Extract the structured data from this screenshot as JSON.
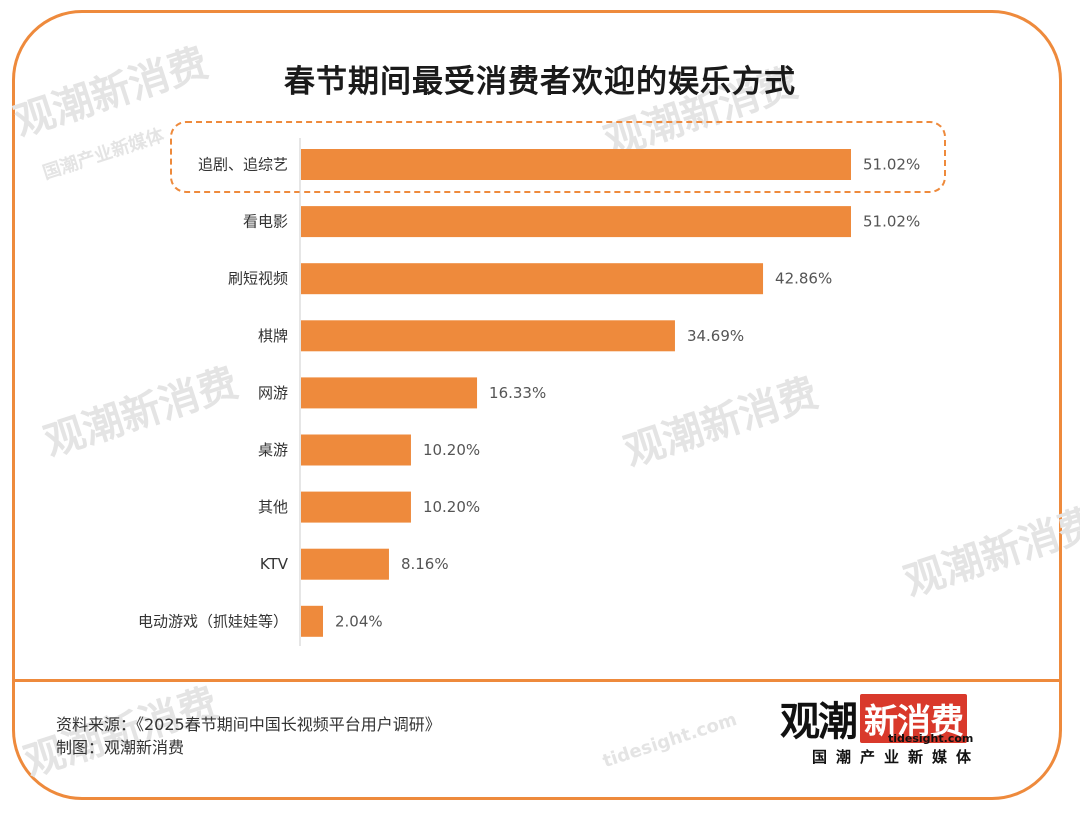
{
  "chart_data": {
    "type": "bar",
    "orientation": "horizontal",
    "title": "春节期间最受消费者欢迎的娱乐方式",
    "categories": [
      "追剧、追综艺",
      "看电影",
      "刷短视频",
      "棋牌",
      "网游",
      "桌游",
      "其他",
      "KTV",
      "电动游戏（抓娃娃等）"
    ],
    "values": [
      51.02,
      51.02,
      42.86,
      34.69,
      16.33,
      10.2,
      10.2,
      8.16,
      2.04
    ],
    "value_labels": [
      "51.02%",
      "51.02%",
      "42.86%",
      "34.69%",
      "16.33%",
      "10.20%",
      "10.20%",
      "8.16%",
      "2.04%"
    ],
    "xlim": [
      0,
      51.02
    ],
    "grid": false,
    "highlighted_category": "追剧、追综艺",
    "bar_color": "#ee8a3c"
  },
  "footer": {
    "source": "资料来源：《2025春节期间中国长视频平台用户调研》",
    "maker": "制图：观潮新消费"
  },
  "logo": {
    "part1": "观潮",
    "part2": "新消费",
    "url": "tidesight.com",
    "tagline": "国潮产业新媒体"
  },
  "watermark": {
    "main": "观潮新消费",
    "url": "tidesight.com",
    "tagline": "国潮产业新媒体"
  },
  "colors": {
    "accent": "#ee8a3c",
    "logo_red": "#d9392b"
  }
}
